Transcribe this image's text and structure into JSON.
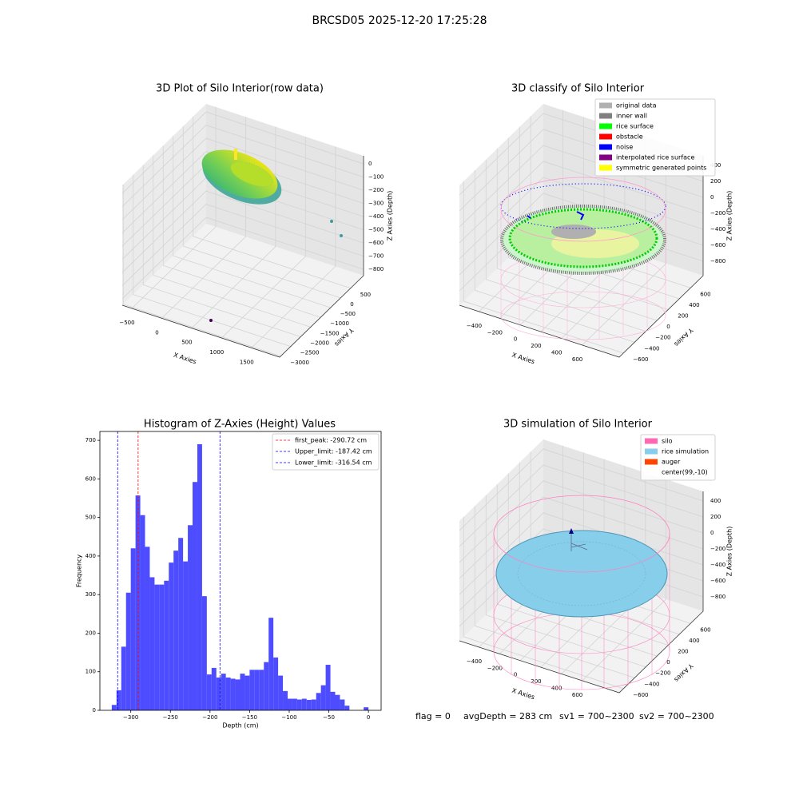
{
  "figure_title": "BRCSD05 2025-12-20 17:25:28",
  "footer": [
    "flag = 0",
    "avgDepth = 283 cm",
    "sv1 = 700~2300",
    "sv2 = 700~2300"
  ],
  "chart_data": [
    {
      "type": "scatter3d",
      "title": "3D Plot of Silo Interior(row data)",
      "x_label": "X Axies",
      "y_label": "Y Axies",
      "z_label": "Z Axies (Depth)",
      "xlim": [
        -660,
        1970
      ],
      "ylim": [
        -3050,
        1150
      ],
      "zlim": [
        -848,
        61
      ],
      "xticks": [
        {
          "value": -500,
          "label": "−500"
        },
        0,
        500,
        1000,
        1500
      ],
      "yticks": [
        500,
        0,
        {
          "value": -500,
          "label": "−500"
        },
        {
          "value": -1000,
          "label": "−1000"
        },
        {
          "value": -1500,
          "label": "−1500"
        },
        {
          "value": -2000,
          "label": "−2000"
        },
        {
          "value": -2500,
          "label": "−2500"
        },
        {
          "value": -3000,
          "label": "−3000"
        }
      ],
      "zticks": [
        0,
        {
          "value": -100,
          "label": "−100"
        },
        {
          "value": -200,
          "label": "−200"
        },
        {
          "value": -300,
          "label": "−300"
        },
        {
          "value": -400,
          "label": "−400"
        },
        {
          "value": -500,
          "label": "−500"
        },
        {
          "value": -600,
          "label": "−600"
        },
        {
          "value": -700,
          "label": "−700"
        },
        {
          "value": -800,
          "label": "−800"
        }
      ]
    },
    {
      "type": "scatter3d",
      "title": "3D classify of Silo Interior",
      "x_label": "X Axies",
      "y_label": "Y Axies",
      "z_label": "Z Axies (Depth)",
      "xlim": [
        -590,
        960
      ],
      "ylim": [
        -675,
        825
      ],
      "zlim": [
        -980,
        520
      ],
      "xticks": [
        {
          "value": -400,
          "label": "−400"
        },
        {
          "value": -200,
          "label": "−200"
        },
        0,
        200,
        400,
        600
      ],
      "yticks": [
        {
          "value": -600,
          "label": "−600"
        },
        {
          "value": -400,
          "label": "−400"
        },
        {
          "value": -200,
          "label": "−200"
        },
        0,
        200,
        400,
        600
      ],
      "zticks": [
        400,
        200,
        0,
        {
          "value": -200,
          "label": "−200"
        },
        {
          "value": -400,
          "label": "−400"
        },
        {
          "value": -600,
          "label": "−600"
        },
        {
          "value": -800,
          "label": "−800"
        }
      ],
      "legend_entries": [
        {
          "name": "original data",
          "color": "#b0b0b0"
        },
        {
          "name": "inner wall",
          "color": "#808080"
        },
        {
          "name": "rice surface",
          "color": "#00ff00"
        },
        {
          "name": "obstacle",
          "color": "#ff0000"
        },
        {
          "name": "noise",
          "color": "#0000ff"
        },
        {
          "name": "interpolated rice surface",
          "color": "#800080"
        },
        {
          "name": "symmetric generated points",
          "color": "#ffff00"
        }
      ]
    },
    {
      "type": "histogram",
      "title": "Histogram of Z-Axies (Height) Values",
      "x_label": "Depth (cm)",
      "y_label": "Frequency",
      "color": "#4d4dff",
      "bins": [
        -324,
        -318,
        -312,
        -306,
        -300,
        -294,
        -288,
        -282,
        -276,
        -270,
        -264,
        -258,
        -252,
        -246,
        -240,
        -234,
        -228,
        -222,
        -216,
        -210,
        -204,
        -198,
        -192,
        -186,
        -180,
        -174,
        -168,
        -162,
        -156,
        -150,
        -144,
        -138,
        -132,
        -126,
        -120,
        -114,
        -108,
        -102,
        -96,
        -90,
        -84,
        -78,
        -72,
        -66,
        -60,
        -54,
        -48,
        -42,
        -36,
        -30,
        -24,
        -18,
        -12,
        -6,
        0
      ],
      "values": [
        14,
        52,
        165,
        305,
        420,
        557,
        506,
        424,
        345,
        326,
        326,
        336,
        383,
        414,
        447,
        386,
        480,
        592,
        690,
        296,
        93,
        110,
        85,
        95,
        85,
        82,
        80,
        95,
        90,
        105,
        105,
        105,
        125,
        240,
        137,
        90,
        50,
        30,
        30,
        28,
        30,
        27,
        28,
        45,
        65,
        118,
        48,
        40,
        28,
        12,
        0,
        0,
        0,
        8
      ],
      "xlim": [
        -339,
        16
      ],
      "ylim": [
        0,
        723
      ],
      "xticks": [
        {
          "value": -300,
          "label": "−300"
        },
        {
          "value": -250,
          "label": "−250"
        },
        {
          "value": -200,
          "label": "−200"
        },
        {
          "value": -150,
          "label": "−150"
        },
        {
          "value": -100,
          "label": "−100"
        },
        {
          "value": -50,
          "label": "−50"
        },
        0
      ],
      "yticks": [
        0,
        100,
        200,
        300,
        400,
        500,
        600,
        700
      ],
      "vlines": [
        {
          "name": "first_peak: -290.72 cm",
          "value": -290.72,
          "color": "#ff0000"
        },
        {
          "name": "Upper_limit: -187.42 cm",
          "value": -187.42,
          "color": "#0000ff"
        },
        {
          "name": "Lower_limit: -316.54 cm",
          "value": -316.54,
          "color": "#0000ff"
        }
      ],
      "legend": "upper right"
    },
    {
      "type": "scatter3d",
      "title": "3D simulation of Silo Interior",
      "x_label": "X Axies",
      "y_label": "Y Axies",
      "z_label": "Z Axies (Depth)",
      "xlim": [
        -590,
        960
      ],
      "ylim": [
        -675,
        825
      ],
      "zlim": [
        -980,
        520
      ],
      "xticks": [
        {
          "value": -400,
          "label": "−400"
        },
        {
          "value": -200,
          "label": "−200"
        },
        0,
        200,
        400,
        600
      ],
      "yticks": [
        {
          "value": -600,
          "label": "−600"
        },
        {
          "value": -400,
          "label": "−400"
        },
        {
          "value": -200,
          "label": "−200"
        },
        0,
        200,
        400,
        600
      ],
      "zticks": [
        400,
        200,
        0,
        {
          "value": -200,
          "label": "−200"
        },
        {
          "value": -400,
          "label": "−400"
        },
        {
          "value": -600,
          "label": "−600"
        },
        {
          "value": -800,
          "label": "−800"
        }
      ],
      "legend_entries": [
        {
          "name": "silo",
          "color": "#ff69b4"
        },
        {
          "name": "rice simulation",
          "color": "#87ceeb"
        },
        {
          "name": "auger",
          "color": "#ff4500"
        },
        {
          "name": "center(99,-10)",
          "color": "#ffffff"
        }
      ]
    }
  ]
}
